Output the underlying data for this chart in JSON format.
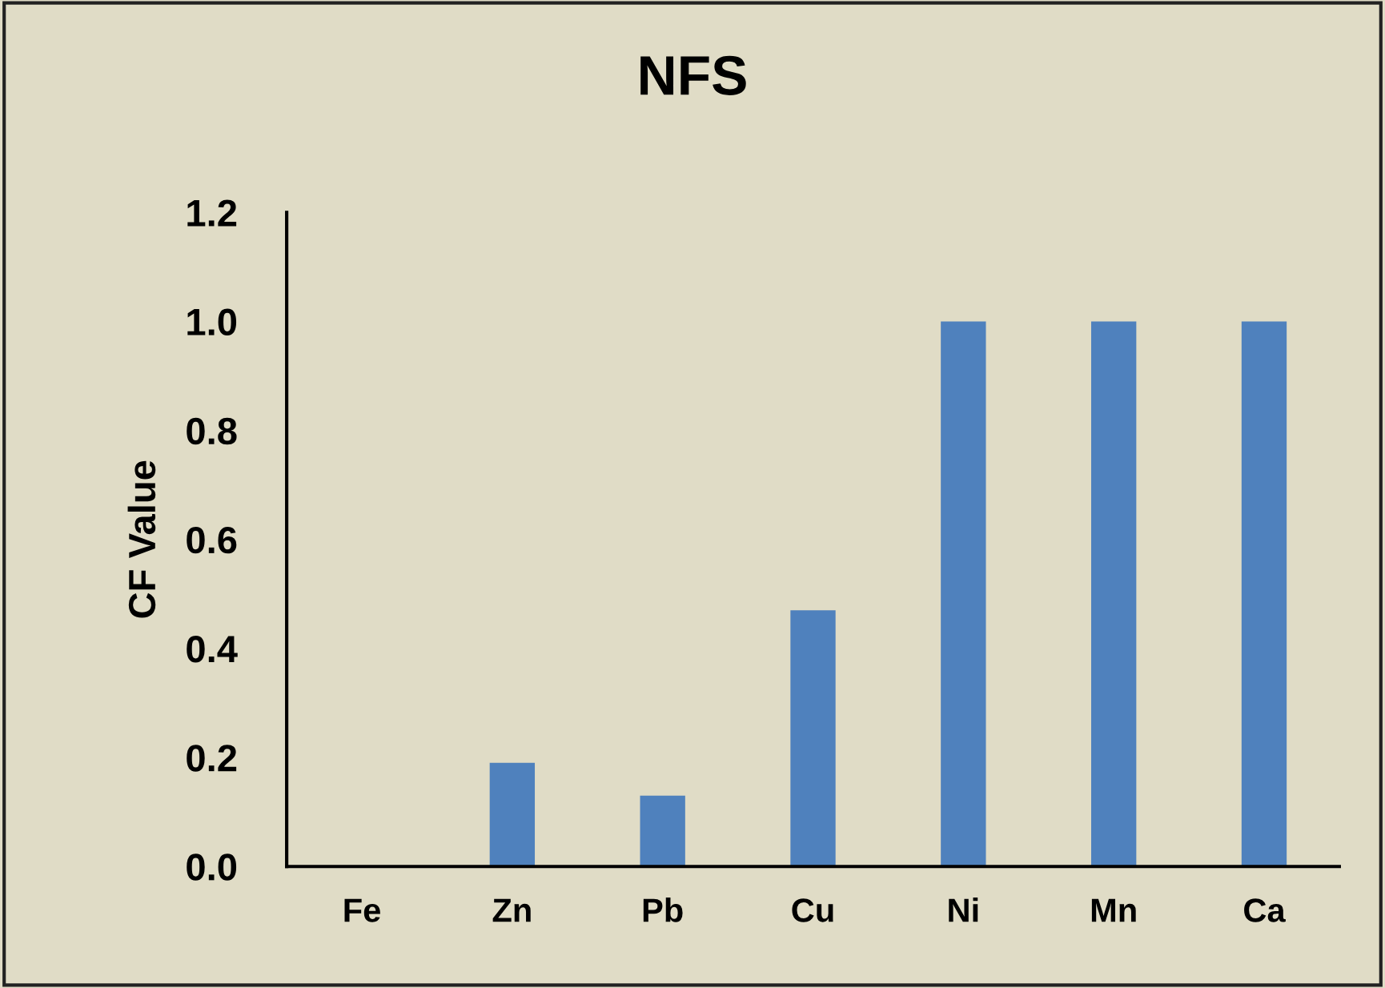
{
  "chart_data": {
    "type": "bar",
    "title": "NFS",
    "ylabel": "CF Value",
    "categories": [
      "Fe",
      "Zn",
      "Pb",
      "Cu",
      "Ni",
      "Mn",
      "Ca"
    ],
    "values": [
      0,
      0.19,
      0.13,
      0.47,
      1.0,
      1.0,
      1.0
    ],
    "color": "#4f81bd",
    "ylim": [
      0,
      1.2
    ],
    "yticks": [
      {
        "value": 0,
        "label": "0.0"
      },
      {
        "value": 0.2,
        "label": "0.2"
      },
      {
        "value": 0.4,
        "label": "0.4"
      },
      {
        "value": 0.6,
        "label": "0.6"
      },
      {
        "value": 0.8,
        "label": "0.8"
      },
      {
        "value": 1.0,
        "label": "1.0"
      },
      {
        "value": 1.2,
        "label": "1.2"
      }
    ],
    "grid": false
  }
}
